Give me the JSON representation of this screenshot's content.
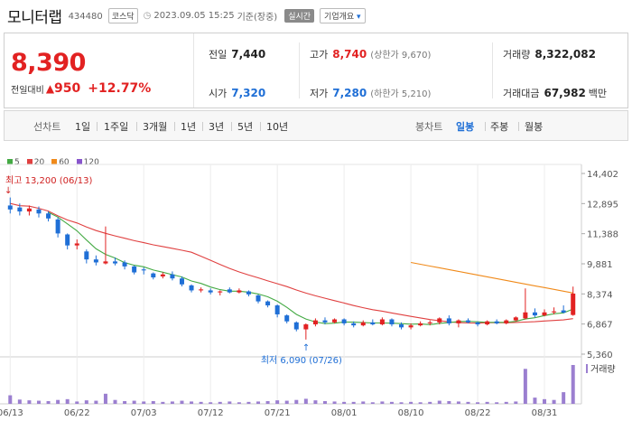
{
  "header": {
    "name": "모니터랩",
    "code": "434480",
    "market": "코스닥",
    "datetime": "2023.09.05 15:25",
    "basis": "기준(장중)",
    "realtime": "실시간",
    "corp_info": "기업개요",
    "corp_arrow": "▾"
  },
  "price": {
    "current": "8,390",
    "change_label": "전일대비",
    "change_arrow": "▲",
    "change_value": "950",
    "change_pct": "+12.77%"
  },
  "stats": {
    "prev_label": "전일",
    "prev_value": "7,440",
    "high_label": "고가",
    "high_value": "8,740",
    "upper_limit": "(상한가 9,670)",
    "volume_label": "거래량",
    "volume_value": "8,322,082",
    "open_label": "시가",
    "open_value": "7,320",
    "low_label": "저가",
    "low_value": "7,280",
    "lower_limit": "(하한가 5,210)",
    "amount_label": "거래대금",
    "amount_value": "67,982",
    "amount_unit": "백만"
  },
  "tabs": {
    "line_label": "선차트",
    "line_tabs": [
      "1일",
      "1주일",
      "3개월",
      "1년",
      "3년",
      "5년",
      "10년"
    ],
    "candle_label": "봉차트",
    "candle_tabs": [
      "일봉",
      "주봉",
      "월봉"
    ],
    "active_candle": "일봉"
  },
  "colors": {
    "up": "#e22222",
    "down": "#1f6fd6",
    "ma5": "#44aa44",
    "ma20": "#e04040",
    "ma60": "#f08a1a",
    "ma120": "#8855cc",
    "volume": "#9b7fd0"
  },
  "chart_data": {
    "type": "candlestick",
    "legend": [
      "5",
      "20",
      "60",
      "120"
    ],
    "y_ticks": [
      "14,402",
      "12,895",
      "11,388",
      "9,881",
      "8,374",
      "6,867",
      "5,360"
    ],
    "ylim": [
      5360,
      14402
    ],
    "x_ticks": [
      "06/13",
      "06/22",
      "07/03",
      "07/12",
      "07/21",
      "08/01",
      "08/10",
      "08/22",
      "08/31"
    ],
    "volume_label": "거래량",
    "max_label": "최고 13,200 (06/13)",
    "min_label": "최저 6,090 (07/26)",
    "max_arrow": "↓",
    "min_arrow": "↑",
    "candles": [
      {
        "d": "06/13",
        "o": 12800,
        "h": 13200,
        "l": 12400,
        "c": 12600
      },
      {
        "d": "06/14",
        "o": 12700,
        "h": 12900,
        "l": 12300,
        "c": 12500
      },
      {
        "d": "06/15",
        "o": 12500,
        "h": 12800,
        "l": 12300,
        "c": 12650
      },
      {
        "d": "06/16",
        "o": 12600,
        "h": 12750,
        "l": 12200,
        "c": 12400
      },
      {
        "d": "06/19",
        "o": 12400,
        "h": 12500,
        "l": 12000,
        "c": 12150
      },
      {
        "d": "06/20",
        "o": 12100,
        "h": 12200,
        "l": 11200,
        "c": 11400
      },
      {
        "d": "06/21",
        "o": 11350,
        "h": 11400,
        "l": 10600,
        "c": 10800
      },
      {
        "d": "06/22",
        "o": 10800,
        "h": 11100,
        "l": 10600,
        "c": 10900
      },
      {
        "d": "06/23",
        "o": 10500,
        "h": 10600,
        "l": 9900,
        "c": 10100
      },
      {
        "d": "06/26",
        "o": 10100,
        "h": 10300,
        "l": 9800,
        "c": 9950
      },
      {
        "d": "06/27",
        "o": 9900,
        "h": 11750,
        "l": 9850,
        "c": 10000
      },
      {
        "d": "06/28",
        "o": 10000,
        "h": 10200,
        "l": 9800,
        "c": 9900
      },
      {
        "d": "06/29",
        "o": 9950,
        "h": 10050,
        "l": 9600,
        "c": 9750
      },
      {
        "d": "06/30",
        "o": 9750,
        "h": 9800,
        "l": 9350,
        "c": 9450
      },
      {
        "d": "07/03",
        "o": 9600,
        "h": 9700,
        "l": 9350,
        "c": 9550
      },
      {
        "d": "07/04",
        "o": 9400,
        "h": 9450,
        "l": 9100,
        "c": 9200
      },
      {
        "d": "07/05",
        "o": 9250,
        "h": 9450,
        "l": 9150,
        "c": 9350
      },
      {
        "d": "07/06",
        "o": 9350,
        "h": 9500,
        "l": 9050,
        "c": 9150
      },
      {
        "d": "07/07",
        "o": 9150,
        "h": 9250,
        "l": 8750,
        "c": 8850
      },
      {
        "d": "07/10",
        "o": 8800,
        "h": 8850,
        "l": 8450,
        "c": 8550
      },
      {
        "d": "07/11",
        "o": 8550,
        "h": 8700,
        "l": 8450,
        "c": 8600
      },
      {
        "d": "07/12",
        "o": 8550,
        "h": 8650,
        "l": 8350,
        "c": 8450
      },
      {
        "d": "07/13",
        "o": 8450,
        "h": 8550,
        "l": 8300,
        "c": 8500
      },
      {
        "d": "07/14",
        "o": 8600,
        "h": 8700,
        "l": 8400,
        "c": 8450
      },
      {
        "d": "07/17",
        "o": 8450,
        "h": 8650,
        "l": 8400,
        "c": 8550
      },
      {
        "d": "07/18",
        "o": 8500,
        "h": 8550,
        "l": 8250,
        "c": 8350
      },
      {
        "d": "07/19",
        "o": 8300,
        "h": 8350,
        "l": 7900,
        "c": 8000
      },
      {
        "d": "07/20",
        "o": 8000,
        "h": 8050,
        "l": 7700,
        "c": 7800
      },
      {
        "d": "07/21",
        "o": 7800,
        "h": 7850,
        "l": 7200,
        "c": 7350
      },
      {
        "d": "07/24",
        "o": 7300,
        "h": 7350,
        "l": 6900,
        "c": 7000
      },
      {
        "d": "07/25",
        "o": 6950,
        "h": 7000,
        "l": 6500,
        "c": 6600
      },
      {
        "d": "07/26",
        "o": 6600,
        "h": 6900,
        "l": 6090,
        "c": 6850
      },
      {
        "d": "07/27",
        "o": 6850,
        "h": 7150,
        "l": 6750,
        "c": 7050
      },
      {
        "d": "07/28",
        "o": 7050,
        "h": 7200,
        "l": 6850,
        "c": 6950
      },
      {
        "d": "07/31",
        "o": 6950,
        "h": 7150,
        "l": 6900,
        "c": 7100
      },
      {
        "d": "08/01",
        "o": 7100,
        "h": 7150,
        "l": 6800,
        "c": 6900
      },
      {
        "d": "08/02",
        "o": 6900,
        "h": 7000,
        "l": 6700,
        "c": 6800
      },
      {
        "d": "08/03",
        "o": 6800,
        "h": 7050,
        "l": 6750,
        "c": 6950
      },
      {
        "d": "08/04",
        "o": 6950,
        "h": 7100,
        "l": 6800,
        "c": 6850
      },
      {
        "d": "08/07",
        "o": 6850,
        "h": 7200,
        "l": 6800,
        "c": 7100
      },
      {
        "d": "08/08",
        "o": 7100,
        "h": 7150,
        "l": 6750,
        "c": 6850
      },
      {
        "d": "08/09",
        "o": 6850,
        "h": 6950,
        "l": 6600,
        "c": 6700
      },
      {
        "d": "08/10",
        "o": 6700,
        "h": 6900,
        "l": 6600,
        "c": 6800
      },
      {
        "d": "08/11",
        "o": 6800,
        "h": 7000,
        "l": 6750,
        "c": 6900
      },
      {
        "d": "08/14",
        "o": 6900,
        "h": 7050,
        "l": 6800,
        "c": 6950
      },
      {
        "d": "08/16",
        "o": 6950,
        "h": 7200,
        "l": 6850,
        "c": 7150
      },
      {
        "d": "08/17",
        "o": 7150,
        "h": 7300,
        "l": 6800,
        "c": 6900
      },
      {
        "d": "08/18",
        "o": 6900,
        "h": 7100,
        "l": 6700,
        "c": 7050
      },
      {
        "d": "08/21",
        "o": 7050,
        "h": 7150,
        "l": 6900,
        "c": 6950
      },
      {
        "d": "08/22",
        "o": 6950,
        "h": 7000,
        "l": 6750,
        "c": 6850
      },
      {
        "d": "08/23",
        "o": 6850,
        "h": 7050,
        "l": 6800,
        "c": 7000
      },
      {
        "d": "08/24",
        "o": 7000,
        "h": 7100,
        "l": 6850,
        "c": 6900
      },
      {
        "d": "08/25",
        "o": 6900,
        "h": 7100,
        "l": 6850,
        "c": 7050
      },
      {
        "d": "08/28",
        "o": 7050,
        "h": 7250,
        "l": 7000,
        "c": 7200
      },
      {
        "d": "08/29",
        "o": 7150,
        "h": 8650,
        "l": 7100,
        "c": 7450
      },
      {
        "d": "08/30",
        "o": 7450,
        "h": 7650,
        "l": 7200,
        "c": 7300
      },
      {
        "d": "08/31",
        "o": 7300,
        "h": 7600,
        "l": 7250,
        "c": 7450
      },
      {
        "d": "09/01",
        "o": 7450,
        "h": 7700,
        "l": 7350,
        "c": 7500
      },
      {
        "d": "09/04",
        "o": 7550,
        "h": 7800,
        "l": 7400,
        "c": 7440
      },
      {
        "d": "09/05",
        "o": 7320,
        "h": 8740,
        "l": 7280,
        "c": 8390
      }
    ],
    "volumes": [
      2.2,
      1.1,
      0.9,
      0.8,
      0.7,
      1.0,
      1.2,
      0.6,
      0.9,
      0.8,
      2.6,
      1.0,
      0.7,
      0.8,
      0.6,
      0.7,
      0.5,
      0.6,
      0.8,
      0.6,
      0.5,
      0.4,
      0.5,
      0.6,
      0.4,
      0.5,
      0.6,
      0.7,
      0.9,
      0.8,
      1.0,
      1.3,
      0.9,
      0.7,
      0.6,
      0.5,
      0.5,
      0.6,
      0.4,
      0.6,
      0.5,
      0.4,
      0.5,
      0.4,
      0.5,
      0.8,
      0.7,
      0.6,
      0.5,
      0.4,
      0.5,
      0.4,
      0.5,
      0.6,
      9.0,
      1.6,
      1.2,
      1.0,
      3.0,
      10.0
    ],
    "ma60_start_index": 42
  }
}
